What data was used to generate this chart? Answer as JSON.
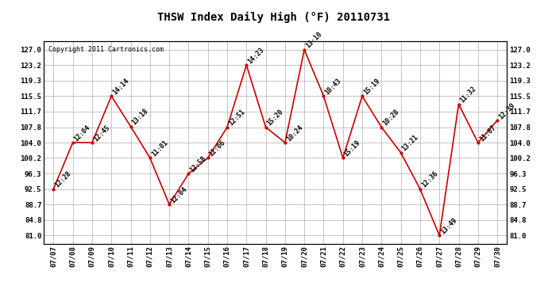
{
  "title": "THSW Index Daily High (°F) 20110731",
  "copyright": "Copyright 2011 Cartronics.com",
  "dates": [
    "07/07",
    "07/08",
    "07/09",
    "07/10",
    "07/11",
    "07/12",
    "07/13",
    "07/14",
    "07/15",
    "07/16",
    "07/17",
    "07/18",
    "07/19",
    "07/20",
    "07/21",
    "07/22",
    "07/23",
    "07/24",
    "07/25",
    "07/26",
    "07/27",
    "07/28",
    "07/29",
    "07/30"
  ],
  "values": [
    92.5,
    104.0,
    104.0,
    115.5,
    108.0,
    100.2,
    88.7,
    96.3,
    100.2,
    107.8,
    123.2,
    107.8,
    104.0,
    127.0,
    115.5,
    100.2,
    115.5,
    107.8,
    101.5,
    92.5,
    81.0,
    113.5,
    104.0,
    109.5
  ],
  "labels": [
    "12:28",
    "12:04",
    "12:45",
    "14:14",
    "13:18",
    "11:01",
    "12:04",
    "12:58",
    "12:06",
    "12:51",
    "14:23",
    "15:20",
    "10:24",
    "13:10",
    "10:43",
    "15:19",
    "15:19",
    "10:28",
    "13:21",
    "12:36",
    "13:49",
    "11:32",
    "11:07",
    "12:39"
  ],
  "yticks": [
    81.0,
    84.8,
    88.7,
    92.5,
    96.3,
    100.2,
    104.0,
    107.8,
    111.7,
    115.5,
    119.3,
    123.2,
    127.0
  ],
  "ylim": [
    79.0,
    129.0
  ],
  "line_color": "#cc0000",
  "marker_color": "#cc0000",
  "bg_color": "#ffffff",
  "grid_color": "#bbbbbb",
  "title_fontsize": 10,
  "label_fontsize": 6,
  "tick_fontsize": 6.5,
  "copyright_fontsize": 6
}
